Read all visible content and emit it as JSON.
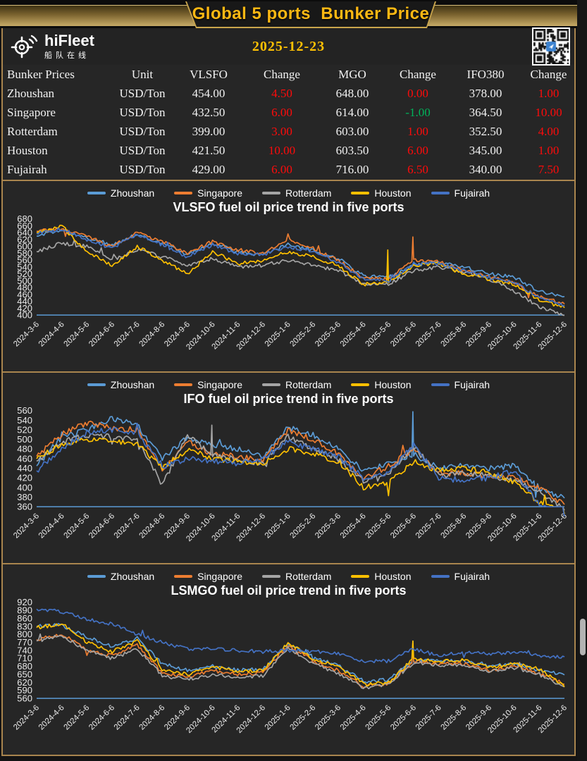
{
  "header": {
    "title": "Global 5 ports  Bunker Price"
  },
  "brand": {
    "name": "hiFleet",
    "subtitle": "船队在线",
    "logo_icon": "crosshair-signal-icon"
  },
  "date": "2025-12-23",
  "qr": {
    "icon": "qr-code",
    "center_color": "#3b82d0"
  },
  "colors": {
    "frame_bronze": "#a9854e",
    "title_gold": "#fdb813",
    "date_gold": "#ffc104",
    "change_up_red": "#ff0b0b",
    "change_down_green": "#00b35a",
    "axis_line_blue": "#5b9bd5",
    "background": "#262626"
  },
  "table": {
    "columns": [
      "Bunker Prices",
      "Unit",
      "VLSFO",
      "Change",
      "MGO",
      "Change",
      "IFO380",
      "Change"
    ],
    "rows": [
      {
        "port": "Zhoushan",
        "unit": "USD/Ton",
        "cells": [
          {
            "v": "454.00"
          },
          {
            "v": "4.50",
            "c": "red"
          },
          {
            "v": "648.00"
          },
          {
            "v": "0.00",
            "c": "red"
          },
          {
            "v": "378.00"
          },
          {
            "v": "1.00",
            "c": "red"
          }
        ]
      },
      {
        "port": "Singapore",
        "unit": "USD/Ton",
        "cells": [
          {
            "v": "432.50"
          },
          {
            "v": "6.00",
            "c": "red"
          },
          {
            "v": "614.00"
          },
          {
            "v": "-1.00",
            "c": "green"
          },
          {
            "v": "364.50"
          },
          {
            "v": "10.00",
            "c": "red"
          }
        ]
      },
      {
        "port": "Rotterdam",
        "unit": "USD/Ton",
        "cells": [
          {
            "v": "399.00"
          },
          {
            "v": "3.00",
            "c": "red"
          },
          {
            "v": "603.00"
          },
          {
            "v": "1.00",
            "c": "red"
          },
          {
            "v": "352.50"
          },
          {
            "v": "4.00",
            "c": "red"
          }
        ]
      },
      {
        "port": "Houston",
        "unit": "USD/Ton",
        "cells": [
          {
            "v": "421.50"
          },
          {
            "v": "10.00",
            "c": "red"
          },
          {
            "v": "603.50"
          },
          {
            "v": "6.00",
            "c": "red"
          },
          {
            "v": "345.00"
          },
          {
            "v": "1.00",
            "c": "red"
          }
        ]
      },
      {
        "port": "Fujairah",
        "unit": "USD/Ton",
        "cells": [
          {
            "v": "429.00"
          },
          {
            "v": "6.00",
            "c": "red"
          },
          {
            "v": "716.00"
          },
          {
            "v": "6.50",
            "c": "red"
          },
          {
            "v": "340.00"
          },
          {
            "v": "7.50",
            "c": "red"
          }
        ]
      }
    ]
  },
  "chart_data": [
    {
      "type": "line",
      "title": "VLSFO fuel oil price trend in five ports",
      "x": [
        "2024-3-6",
        "2024-4-6",
        "2024-5-6",
        "2024-6-6",
        "2024-7-6",
        "2024-8-6",
        "2024-9-6",
        "2024-10-6",
        "2024-11-6",
        "2024-12-6",
        "2025-1-6",
        "2025-2-6",
        "2025-3-6",
        "2025-4-6",
        "2025-5-6",
        "2025-6-6",
        "2025-7-6",
        "2025-8-6",
        "2025-9-6",
        "2025-10-6",
        "2025-11-6",
        "2025-12-6"
      ],
      "ylim": [
        400,
        680
      ],
      "ytick_step": 20,
      "grid": false,
      "legend_position": "top",
      "jitter": 7,
      "series": [
        {
          "name": "Zhoushan",
          "color": "#5B9BD5",
          "values": [
            630,
            648,
            625,
            605,
            635,
            610,
            575,
            610,
            585,
            575,
            605,
            590,
            565,
            515,
            510,
            545,
            555,
            540,
            520,
            510,
            470,
            454
          ],
          "spikes": []
        },
        {
          "name": "Singapore",
          "color": "#ED7D31",
          "values": [
            645,
            650,
            630,
            600,
            640,
            615,
            580,
            615,
            590,
            580,
            620,
            595,
            560,
            510,
            505,
            560,
            555,
            530,
            510,
            495,
            455,
            432.5
          ],
          "spikes": [
            {
              "i": 15,
              "v": 628
            }
          ]
        },
        {
          "name": "Rotterdam",
          "color": "#A5A5A5",
          "values": [
            585,
            610,
            600,
            560,
            590,
            570,
            545,
            565,
            540,
            545,
            560,
            545,
            530,
            490,
            490,
            530,
            540,
            525,
            505,
            470,
            425,
            399
          ],
          "spikes": []
        },
        {
          "name": "Houston",
          "color": "#FFC000",
          "values": [
            640,
            660,
            585,
            545,
            600,
            560,
            520,
            585,
            550,
            560,
            585,
            570,
            545,
            490,
            495,
            545,
            550,
            520,
            505,
            490,
            445,
            421.5
          ],
          "spikes": [
            {
              "i": 14,
              "v": 590
            }
          ]
        },
        {
          "name": "Fujairah",
          "color": "#4472C4",
          "values": [
            638,
            650,
            620,
            595,
            635,
            605,
            570,
            605,
            580,
            575,
            600,
            585,
            555,
            505,
            500,
            550,
            550,
            530,
            510,
            495,
            450,
            429
          ],
          "spikes": []
        }
      ]
    },
    {
      "type": "line",
      "title": "IFO fuel oil price trend in five ports",
      "x": [
        "2024-3-6",
        "2024-4-6",
        "2024-5-6",
        "2024-6-6",
        "2024-7-6",
        "2024-8-6",
        "2024-9-6",
        "2024-10-6",
        "2024-11-6",
        "2024-12-6",
        "2025-1-6",
        "2025-2-6",
        "2025-3-6",
        "2025-4-6",
        "2025-5-6",
        "2025-6-6",
        "2025-7-6",
        "2025-8-6",
        "2025-9-6",
        "2025-10-6",
        "2025-11-6",
        "2025-12-6"
      ],
      "ylim": [
        360,
        560
      ],
      "ytick_step": 20,
      "grid": false,
      "legend_position": "top",
      "jitter": 8,
      "series": [
        {
          "name": "Zhoushan",
          "color": "#5B9BD5",
          "values": [
            445,
            505,
            520,
            545,
            530,
            460,
            505,
            490,
            480,
            465,
            525,
            510,
            480,
            435,
            450,
            470,
            440,
            445,
            440,
            445,
            400,
            378
          ],
          "spikes": [
            {
              "i": 15,
              "v": 558
            }
          ]
        },
        {
          "name": "Singapore",
          "color": "#ED7D31",
          "values": [
            465,
            510,
            535,
            525,
            520,
            435,
            495,
            470,
            465,
            455,
            520,
            500,
            470,
            420,
            445,
            480,
            430,
            430,
            425,
            420,
            400,
            364.5
          ],
          "spikes": []
        },
        {
          "name": "Rotterdam",
          "color": "#A5A5A5",
          "values": [
            455,
            495,
            510,
            505,
            500,
            405,
            510,
            465,
            460,
            450,
            505,
            480,
            460,
            415,
            430,
            485,
            425,
            430,
            425,
            415,
            390,
            352.5
          ],
          "spikes": [
            {
              "i": 7,
              "v": 530
            }
          ]
        },
        {
          "name": "Houston",
          "color": "#FFC000",
          "values": [
            460,
            490,
            500,
            495,
            490,
            440,
            480,
            460,
            455,
            450,
            480,
            470,
            455,
            400,
            410,
            455,
            435,
            440,
            430,
            410,
            370,
            345
          ],
          "spikes": []
        },
        {
          "name": "Fujairah",
          "color": "#4472C4",
          "values": [
            435,
            480,
            515,
            520,
            515,
            445,
            460,
            455,
            450,
            460,
            495,
            480,
            465,
            420,
            430,
            490,
            420,
            415,
            420,
            435,
            365,
            340
          ],
          "spikes": []
        }
      ]
    },
    {
      "type": "line",
      "title": "LSMGO fuel oil price trend in five ports",
      "x": [
        "2024-3-6",
        "2024-4-6",
        "2024-5-6",
        "2024-6-6",
        "2024-7-6",
        "2024-8-6",
        "2024-9-6",
        "2024-10-6",
        "2024-11-6",
        "2024-12-6",
        "2025-1-6",
        "2025-2-6",
        "2025-3-6",
        "2025-4-6",
        "2025-5-6",
        "2025-6-6",
        "2025-7-6",
        "2025-8-6",
        "2025-9-6",
        "2025-10-6",
        "2025-11-6",
        "2025-12-6"
      ],
      "ylim": [
        560,
        920
      ],
      "ytick_step": 30,
      "grid": false,
      "legend_position": "top",
      "jitter": 9,
      "series": [
        {
          "name": "Zhoushan",
          "color": "#5B9BD5",
          "values": [
            830,
            835,
            790,
            755,
            785,
            690,
            665,
            680,
            665,
            670,
            765,
            715,
            685,
            625,
            630,
            700,
            700,
            700,
            680,
            690,
            665,
            648
          ],
          "spikes": [
            {
              "i": 15,
              "v": 775
            }
          ]
        },
        {
          "name": "Singapore",
          "color": "#ED7D31",
          "values": [
            780,
            800,
            745,
            720,
            760,
            655,
            640,
            665,
            650,
            655,
            760,
            700,
            665,
            605,
            615,
            700,
            690,
            690,
            665,
            680,
            655,
            614
          ],
          "spikes": [
            {
              "i": 15,
              "v": 760
            }
          ]
        },
        {
          "name": "Rotterdam",
          "color": "#A5A5A5",
          "values": [
            775,
            795,
            740,
            710,
            745,
            645,
            630,
            650,
            640,
            645,
            750,
            690,
            655,
            600,
            610,
            695,
            685,
            685,
            660,
            675,
            650,
            603
          ],
          "spikes": []
        },
        {
          "name": "Houston",
          "color": "#FFC000",
          "values": [
            825,
            840,
            770,
            735,
            775,
            670,
            650,
            680,
            660,
            665,
            770,
            710,
            680,
            615,
            620,
            710,
            700,
            705,
            675,
            690,
            670,
            603.5
          ],
          "spikes": [
            {
              "i": 15,
              "v": 775
            }
          ]
        },
        {
          "name": "Fujairah",
          "color": "#4472C4",
          "values": [
            895,
            885,
            855,
            840,
            800,
            770,
            745,
            745,
            740,
            735,
            740,
            735,
            730,
            700,
            700,
            745,
            720,
            735,
            725,
            735,
            720,
            716
          ],
          "spikes": []
        }
      ]
    }
  ]
}
